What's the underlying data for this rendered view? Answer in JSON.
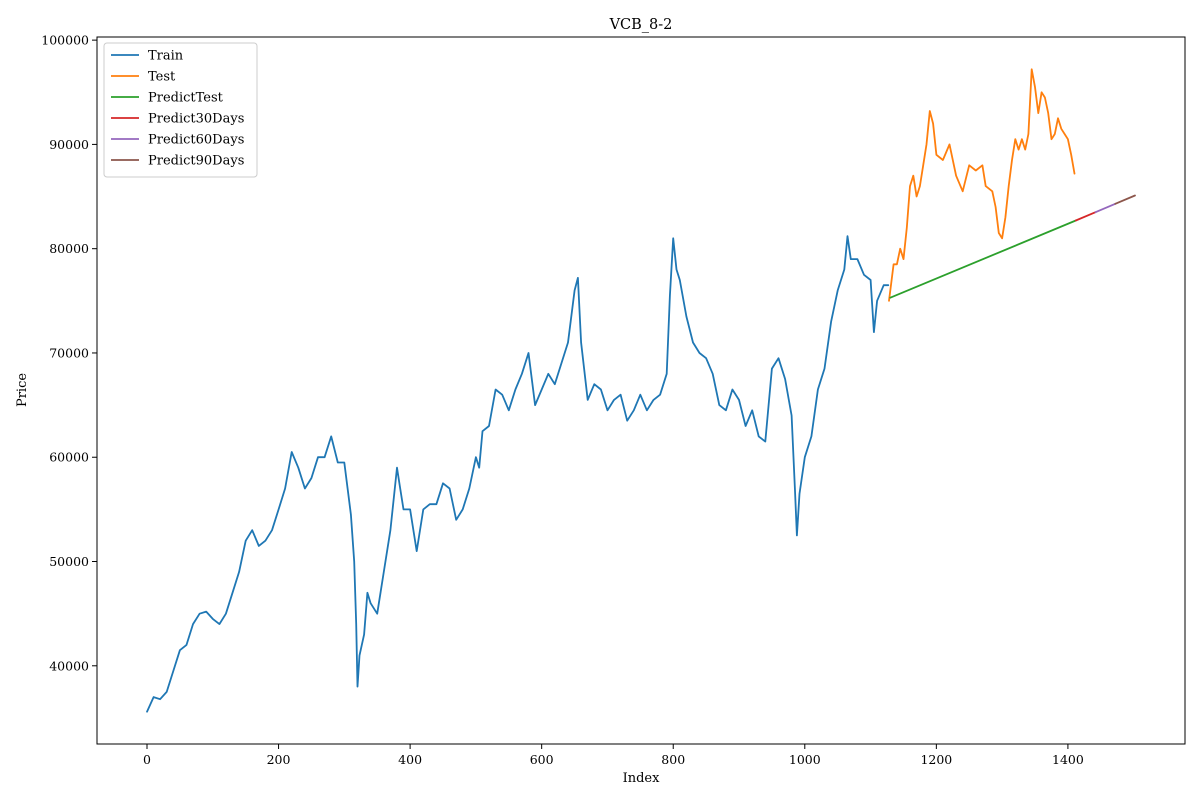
{
  "chart_data": {
    "type": "line",
    "title": "VCB_8-2",
    "xlabel": "Index",
    "ylabel": "Price",
    "xlim": [
      -76,
      1578
    ],
    "ylim": [
      32500,
      100300
    ],
    "x_ticks": [
      0,
      200,
      400,
      600,
      800,
      1000,
      1200,
      1400
    ],
    "y_ticks": [
      40000,
      50000,
      60000,
      70000,
      80000,
      90000,
      100000
    ],
    "grid": false,
    "legend_position": "top-left",
    "series": [
      {
        "name": "Train",
        "color": "#1f77b4",
        "points": [
          [
            0,
            35600
          ],
          [
            10,
            37000
          ],
          [
            20,
            36800
          ],
          [
            30,
            37500
          ],
          [
            40,
            39500
          ],
          [
            50,
            41500
          ],
          [
            60,
            42000
          ],
          [
            70,
            44000
          ],
          [
            80,
            45000
          ],
          [
            90,
            45200
          ],
          [
            100,
            44500
          ],
          [
            110,
            44000
          ],
          [
            120,
            45000
          ],
          [
            130,
            47000
          ],
          [
            140,
            49000
          ],
          [
            150,
            52000
          ],
          [
            160,
            53000
          ],
          [
            170,
            51500
          ],
          [
            180,
            52000
          ],
          [
            190,
            53000
          ],
          [
            200,
            55000
          ],
          [
            210,
            57000
          ],
          [
            220,
            60500
          ],
          [
            230,
            59000
          ],
          [
            240,
            57000
          ],
          [
            250,
            58000
          ],
          [
            260,
            60000
          ],
          [
            270,
            60000
          ],
          [
            280,
            62000
          ],
          [
            290,
            59500
          ],
          [
            300,
            59500
          ],
          [
            305,
            57000
          ],
          [
            310,
            54500
          ],
          [
            315,
            50000
          ],
          [
            318,
            44000
          ],
          [
            320,
            38000
          ],
          [
            323,
            41000
          ],
          [
            330,
            43000
          ],
          [
            335,
            47000
          ],
          [
            340,
            46000
          ],
          [
            350,
            45000
          ],
          [
            360,
            49000
          ],
          [
            370,
            53000
          ],
          [
            380,
            59000
          ],
          [
            385,
            57000
          ],
          [
            390,
            55000
          ],
          [
            400,
            55000
          ],
          [
            410,
            51000
          ],
          [
            420,
            55000
          ],
          [
            430,
            55500
          ],
          [
            440,
            55500
          ],
          [
            450,
            57500
          ],
          [
            460,
            57000
          ],
          [
            470,
            54000
          ],
          [
            480,
            55000
          ],
          [
            490,
            57000
          ],
          [
            500,
            60000
          ],
          [
            505,
            59000
          ],
          [
            510,
            62500
          ],
          [
            520,
            63000
          ],
          [
            530,
            66500
          ],
          [
            540,
            66000
          ],
          [
            550,
            64500
          ],
          [
            560,
            66500
          ],
          [
            570,
            68000
          ],
          [
            580,
            70000
          ],
          [
            590,
            65000
          ],
          [
            600,
            66500
          ],
          [
            610,
            68000
          ],
          [
            620,
            67000
          ],
          [
            640,
            71000
          ],
          [
            650,
            76000
          ],
          [
            655,
            77200
          ],
          [
            660,
            71000
          ],
          [
            670,
            65500
          ],
          [
            680,
            67000
          ],
          [
            690,
            66500
          ],
          [
            700,
            64500
          ],
          [
            710,
            65500
          ],
          [
            720,
            66000
          ],
          [
            730,
            63500
          ],
          [
            740,
            64500
          ],
          [
            750,
            66000
          ],
          [
            760,
            64500
          ],
          [
            770,
            65500
          ],
          [
            780,
            66000
          ],
          [
            790,
            68000
          ],
          [
            795,
            75500
          ],
          [
            800,
            81000
          ],
          [
            805,
            78000
          ],
          [
            810,
            77000
          ],
          [
            820,
            73500
          ],
          [
            830,
            71000
          ],
          [
            840,
            70000
          ],
          [
            850,
            69500
          ],
          [
            860,
            68000
          ],
          [
            870,
            65000
          ],
          [
            880,
            64500
          ],
          [
            890,
            66500
          ],
          [
            900,
            65500
          ],
          [
            910,
            63000
          ],
          [
            920,
            64500
          ],
          [
            930,
            62000
          ],
          [
            940,
            61500
          ],
          [
            950,
            68500
          ],
          [
            960,
            69500
          ],
          [
            970,
            67500
          ],
          [
            980,
            64000
          ],
          [
            985,
            57000
          ],
          [
            988,
            52500
          ],
          [
            992,
            56500
          ],
          [
            1000,
            60000
          ],
          [
            1010,
            62000
          ],
          [
            1020,
            66500
          ],
          [
            1030,
            68500
          ],
          [
            1040,
            73000
          ],
          [
            1050,
            76000
          ],
          [
            1060,
            78000
          ],
          [
            1065,
            81200
          ],
          [
            1070,
            79000
          ],
          [
            1080,
            79000
          ],
          [
            1090,
            77500
          ],
          [
            1100,
            77000
          ],
          [
            1105,
            72000
          ],
          [
            1110,
            75000
          ],
          [
            1120,
            76500
          ],
          [
            1127,
            76500
          ]
        ]
      },
      {
        "name": "Test",
        "color": "#ff7f0e",
        "points": [
          [
            1128,
            75000
          ],
          [
            1135,
            78500
          ],
          [
            1140,
            78500
          ],
          [
            1145,
            80000
          ],
          [
            1150,
            79000
          ],
          [
            1155,
            82000
          ],
          [
            1160,
            86000
          ],
          [
            1165,
            87000
          ],
          [
            1170,
            85000
          ],
          [
            1175,
            86000
          ],
          [
            1180,
            88000
          ],
          [
            1185,
            90000
          ],
          [
            1190,
            93200
          ],
          [
            1195,
            92000
          ],
          [
            1200,
            89000
          ],
          [
            1210,
            88500
          ],
          [
            1220,
            90000
          ],
          [
            1230,
            87000
          ],
          [
            1240,
            85500
          ],
          [
            1250,
            88000
          ],
          [
            1260,
            87500
          ],
          [
            1270,
            88000
          ],
          [
            1275,
            86000
          ],
          [
            1285,
            85500
          ],
          [
            1290,
            84000
          ],
          [
            1295,
            81500
          ],
          [
            1300,
            81000
          ],
          [
            1305,
            83000
          ],
          [
            1310,
            86000
          ],
          [
            1315,
            88500
          ],
          [
            1320,
            90500
          ],
          [
            1325,
            89500
          ],
          [
            1330,
            90500
          ],
          [
            1335,
            89500
          ],
          [
            1340,
            91000
          ],
          [
            1345,
            97200
          ],
          [
            1350,
            95500
          ],
          [
            1355,
            93000
          ],
          [
            1360,
            95000
          ],
          [
            1365,
            94500
          ],
          [
            1370,
            93000
          ],
          [
            1375,
            90500
          ],
          [
            1380,
            91000
          ],
          [
            1385,
            92500
          ],
          [
            1390,
            91500
          ],
          [
            1395,
            91000
          ],
          [
            1400,
            90500
          ],
          [
            1405,
            89000
          ],
          [
            1410,
            87200
          ]
        ]
      },
      {
        "name": "PredictTest",
        "color": "#2ca02c",
        "points": [
          [
            1130,
            75300
          ],
          [
            1412,
            82700
          ]
        ]
      },
      {
        "name": "Predict30Days",
        "color": "#d62728",
        "points": [
          [
            1412,
            82700
          ],
          [
            1442,
            83500
          ]
        ]
      },
      {
        "name": "Predict60Days",
        "color": "#9467bd",
        "points": [
          [
            1442,
            83500
          ],
          [
            1472,
            84300
          ]
        ]
      },
      {
        "name": "Predict90Days",
        "color": "#8c564b",
        "points": [
          [
            1472,
            84300
          ],
          [
            1502,
            85100
          ]
        ]
      }
    ]
  }
}
